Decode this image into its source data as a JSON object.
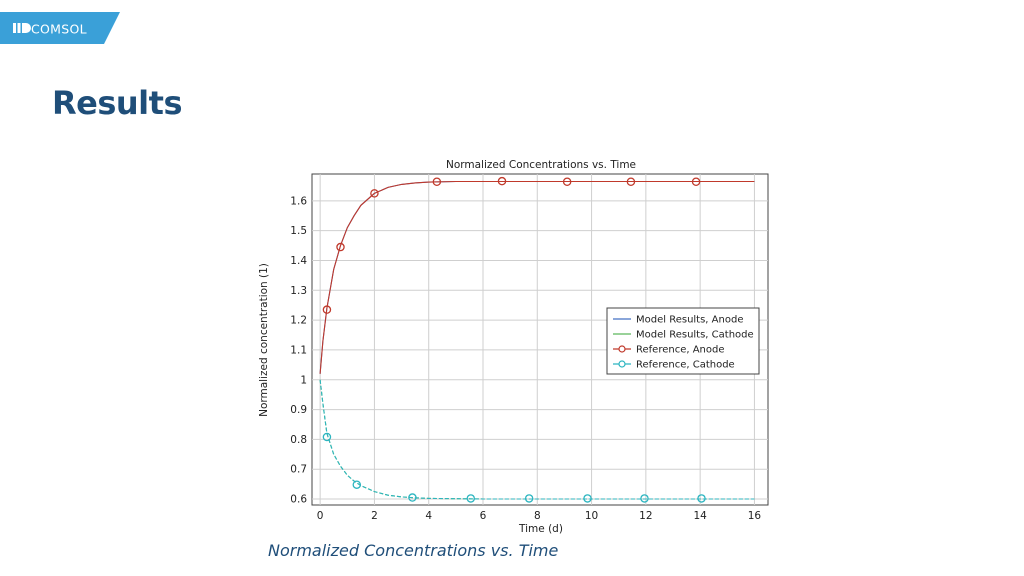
{
  "brand": {
    "logo_text": "COMSOL",
    "accent": "#3aa0d8"
  },
  "slide": {
    "title": "Results",
    "caption": "Normalized Concentrations vs. Time"
  },
  "chart_data": {
    "type": "line",
    "title": "Normalized Concentrations vs. Time",
    "xlabel": "Time (d)",
    "ylabel": "Normalized concentration (1)",
    "xlim": [
      -0.3,
      16.5
    ],
    "ylim": [
      0.58,
      1.69
    ],
    "xticks": [
      0,
      2,
      4,
      6,
      8,
      10,
      12,
      14,
      16
    ],
    "yticks": [
      0.6,
      0.7,
      0.8,
      0.9,
      1,
      1.1,
      1.2,
      1.3,
      1.4,
      1.5,
      1.6
    ],
    "ytick_labels": [
      "0.6",
      "0.7",
      "0.8",
      "0.9",
      "1",
      "1.1",
      "1.2",
      "1.3",
      "1.4",
      "1.5",
      "1.6"
    ],
    "grid": true,
    "legend_position": "center-right",
    "series": [
      {
        "name": "Model Results, Anode",
        "style": "line",
        "color": "#4472c4",
        "x": [
          0,
          0.1,
          0.25,
          0.5,
          0.75,
          1,
          1.25,
          1.5,
          2,
          2.5,
          3,
          3.5,
          4,
          5,
          6,
          8,
          10,
          12,
          14,
          16
        ],
        "y": [
          1.02,
          1.13,
          1.24,
          1.37,
          1.45,
          1.51,
          1.55,
          1.585,
          1.625,
          1.645,
          1.655,
          1.66,
          1.663,
          1.665,
          1.665,
          1.665,
          1.665,
          1.665,
          1.665,
          1.665
        ]
      },
      {
        "name": "Model Results, Cathode",
        "style": "line",
        "color": "#5cb85c",
        "x": [
          0,
          0.1,
          0.25,
          0.5,
          0.75,
          1,
          1.25,
          1.5,
          2,
          2.5,
          3,
          3.5,
          4,
          5,
          6,
          8,
          10,
          12,
          14,
          16
        ],
        "y": [
          1.0,
          0.92,
          0.82,
          0.75,
          0.71,
          0.68,
          0.66,
          0.645,
          0.625,
          0.613,
          0.607,
          0.604,
          0.602,
          0.601,
          0.6,
          0.6,
          0.6,
          0.6,
          0.6,
          0.6
        ]
      },
      {
        "name": "Reference, Anode",
        "style": "line-marker",
        "color": "#c0392b",
        "x": [
          0,
          0.1,
          0.25,
          0.5,
          0.75,
          1,
          1.25,
          1.5,
          2,
          2.5,
          3,
          3.5,
          4,
          5,
          6,
          8,
          10,
          12,
          14,
          16
        ],
        "y": [
          1.02,
          1.13,
          1.24,
          1.37,
          1.45,
          1.51,
          1.55,
          1.585,
          1.625,
          1.645,
          1.655,
          1.66,
          1.663,
          1.665,
          1.665,
          1.665,
          1.665,
          1.665,
          1.665,
          1.665
        ],
        "markers_x": [
          0.25,
          0.75,
          2,
          4.3,
          6.7,
          9.1,
          11.45,
          13.85
        ],
        "markers_y": [
          1.235,
          1.445,
          1.625,
          1.664,
          1.666,
          1.664,
          1.664,
          1.664
        ]
      },
      {
        "name": "Reference, Cathode",
        "style": "line-marker",
        "color": "#2cb5c0",
        "x": [
          0,
          0.1,
          0.25,
          0.5,
          0.75,
          1,
          1.25,
          1.5,
          2,
          2.5,
          3,
          3.5,
          4,
          5,
          6,
          8,
          10,
          12,
          14,
          16
        ],
        "y": [
          1.0,
          0.92,
          0.82,
          0.75,
          0.71,
          0.68,
          0.66,
          0.645,
          0.625,
          0.613,
          0.607,
          0.604,
          0.602,
          0.601,
          0.6,
          0.6,
          0.6,
          0.6,
          0.6,
          0.6
        ],
        "markers_x": [
          0.25,
          1.35,
          3.4,
          5.55,
          7.7,
          9.85,
          11.95,
          14.05
        ],
        "markers_y": [
          0.808,
          0.648,
          0.605,
          0.602,
          0.602,
          0.602,
          0.602,
          0.602
        ]
      }
    ]
  }
}
